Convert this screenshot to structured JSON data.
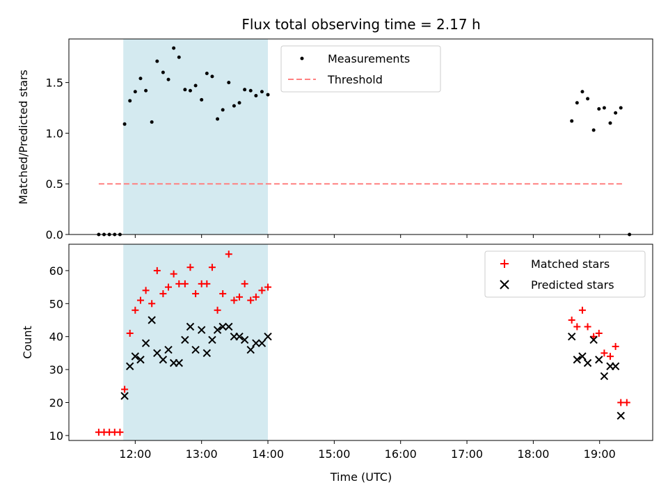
{
  "chart_data": [
    {
      "type": "scatter",
      "title": "Flux total observing time = 2.17 h",
      "xlabel": "",
      "ylabel": "Matched/Predicted stars",
      "xlim": [
        11.0,
        19.8
      ],
      "ylim": [
        0.0,
        1.93
      ],
      "yticks": [
        0.0,
        0.5,
        1.0,
        1.5
      ],
      "ytick_labels": [
        "0.0",
        "0.5",
        "1.0",
        "1.5"
      ],
      "xticks": [
        12,
        13,
        14,
        15,
        16,
        17,
        18,
        19
      ],
      "shaded_region": {
        "x_start": 11.82,
        "x_end": 14.0,
        "color": "#d4eaf0"
      },
      "legend_position": "upper center",
      "series": [
        {
          "name": "Measurements",
          "marker": "dot",
          "color": "#000000",
          "x": [
            11.45,
            11.53,
            11.61,
            11.69,
            11.77,
            11.84,
            11.92,
            12.0,
            12.08,
            12.16,
            12.25,
            12.33,
            12.42,
            12.5,
            12.58,
            12.66,
            12.75,
            12.83,
            12.91,
            13.0,
            13.08,
            13.16,
            13.24,
            13.32,
            13.41,
            13.49,
            13.57,
            13.65,
            13.74,
            13.82,
            13.91,
            14.0,
            18.58,
            18.66,
            18.74,
            18.82,
            18.91,
            18.99,
            19.07,
            19.16,
            19.24,
            19.32,
            19.45
          ],
          "y": [
            0.0,
            0.0,
            0.0,
            0.0,
            0.0,
            1.09,
            1.32,
            1.41,
            1.54,
            1.42,
            1.11,
            1.71,
            1.6,
            1.53,
            1.84,
            1.75,
            1.43,
            1.42,
            1.47,
            1.33,
            1.59,
            1.56,
            1.14,
            1.23,
            1.5,
            1.27,
            1.3,
            1.43,
            1.42,
            1.37,
            1.41,
            1.38,
            1.12,
            1.3,
            1.41,
            1.34,
            1.03,
            1.24,
            1.25,
            1.1,
            1.2,
            1.25,
            0.0
          ]
        },
        {
          "name": "Threshold",
          "style": "dashed-line",
          "color": "#ff8080",
          "x": [
            11.45,
            19.35
          ],
          "y": [
            0.5,
            0.5
          ]
        }
      ]
    },
    {
      "type": "scatter",
      "title": "",
      "xlabel": "Time (UTC)",
      "ylabel": "Count",
      "xlim": [
        11.0,
        19.8
      ],
      "ylim": [
        8.5,
        68.0
      ],
      "yticks": [
        10,
        20,
        30,
        40,
        50,
        60
      ],
      "ytick_labels": [
        "10",
        "20",
        "30",
        "40",
        "50",
        "60"
      ],
      "xticks": [
        12,
        13,
        14,
        15,
        16,
        17,
        18,
        19
      ],
      "xtick_labels": [
        "12:00",
        "13:00",
        "14:00",
        "15:00",
        "16:00",
        "17:00",
        "18:00",
        "19:00"
      ],
      "shaded_region": {
        "x_start": 11.82,
        "x_end": 14.0,
        "color": "#d4eaf0"
      },
      "legend_position": "upper right",
      "series": [
        {
          "name": "Matched stars",
          "marker": "plus",
          "color": "#ff0000",
          "x": [
            11.45,
            11.53,
            11.61,
            11.69,
            11.77,
            11.84,
            11.92,
            12.0,
            12.08,
            12.16,
            12.25,
            12.33,
            12.42,
            12.5,
            12.58,
            12.66,
            12.75,
            12.83,
            12.91,
            13.0,
            13.08,
            13.16,
            13.24,
            13.32,
            13.41,
            13.49,
            13.57,
            13.65,
            13.74,
            13.82,
            13.91,
            14.0,
            18.58,
            18.66,
            18.74,
            18.82,
            18.91,
            18.99,
            19.07,
            19.16,
            19.24,
            19.32,
            19.41
          ],
          "y": [
            11,
            11,
            11,
            11,
            11,
            24,
            41,
            48,
            51,
            54,
            50,
            60,
            53,
            55,
            59,
            56,
            56,
            61,
            53,
            56,
            56,
            61,
            48,
            53,
            65,
            51,
            52,
            56,
            51,
            52,
            54,
            55,
            45,
            43,
            48,
            43,
            40,
            41,
            35,
            34,
            37,
            20,
            20
          ]
        },
        {
          "name": "Predicted stars",
          "marker": "x",
          "color": "#000000",
          "x": [
            11.84,
            11.92,
            12.0,
            12.08,
            12.16,
            12.25,
            12.33,
            12.42,
            12.5,
            12.58,
            12.66,
            12.75,
            12.83,
            12.91,
            13.0,
            13.08,
            13.16,
            13.24,
            13.32,
            13.41,
            13.49,
            13.57,
            13.65,
            13.74,
            13.82,
            13.91,
            14.0,
            18.58,
            18.66,
            18.74,
            18.82,
            18.91,
            18.99,
            19.07,
            19.16,
            19.24,
            19.32
          ],
          "y": [
            22,
            31,
            34,
            33,
            38,
            45,
            35,
            33,
            36,
            32,
            32,
            39,
            43,
            36,
            42,
            35,
            39,
            42,
            43,
            43,
            40,
            40,
            39,
            36,
            38,
            38,
            40,
            40,
            33,
            34,
            32,
            39,
            33,
            28,
            31,
            31,
            16
          ]
        }
      ]
    }
  ]
}
